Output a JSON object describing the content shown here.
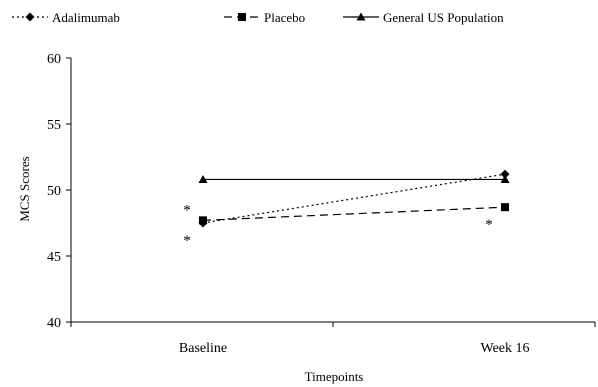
{
  "chart_data": {
    "type": "line",
    "title": "",
    "xlabel": "Timepoints",
    "ylabel": "MCS Scores",
    "categories": [
      "Baseline",
      "Week 16"
    ],
    "ylim": [
      40,
      60
    ],
    "yticks": [
      40,
      45,
      50,
      55,
      60
    ],
    "grid": false,
    "legend_position": "top",
    "series": [
      {
        "name": "Adalimumab",
        "values": [
          47.5,
          51.2
        ],
        "marker": "diamond",
        "line_style": "dotted",
        "color": "#000000"
      },
      {
        "name": "Placebo",
        "values": [
          47.7,
          48.7
        ],
        "marker": "square",
        "line_style": "dashed",
        "color": "#000000"
      },
      {
        "name": "General US Population",
        "values": [
          50.8,
          50.8
        ],
        "marker": "triangle",
        "line_style": "solid",
        "color": "#000000"
      }
    ],
    "annotations": [
      {
        "text": "*",
        "category": "Baseline",
        "series": "Placebo",
        "side": "above"
      },
      {
        "text": "*",
        "category": "Baseline",
        "series": "Adalimumab",
        "side": "below"
      },
      {
        "text": "*",
        "category": "Week 16",
        "series": "Placebo",
        "side": "below"
      }
    ]
  }
}
